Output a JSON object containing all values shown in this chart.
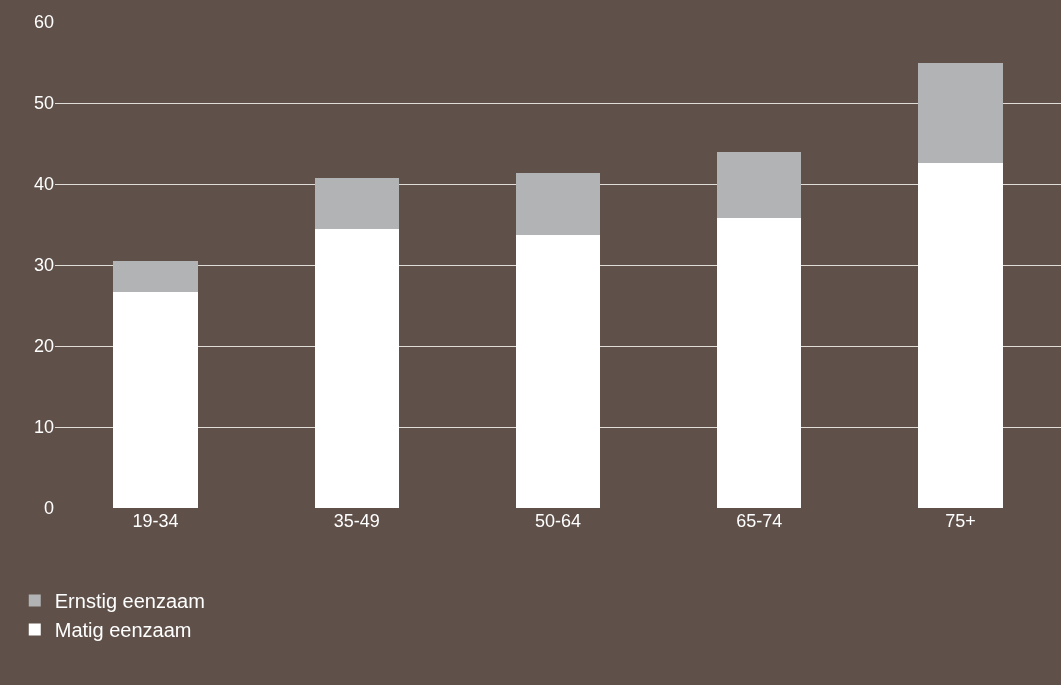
{
  "chart_data": {
    "type": "bar",
    "stacked": true,
    "categories": [
      "19-34",
      "35-49",
      "50-64",
      "65-74",
      "75+"
    ],
    "series": [
      {
        "name": "Matig eenzaam",
        "color": "#ffffff",
        "values": [
          26.7,
          34.4,
          33.7,
          35.8,
          42.6
        ]
      },
      {
        "name": "Ernstig eenzaam",
        "color": "#b1b3b4",
        "values": [
          3.8,
          6.3,
          7.7,
          8.2,
          12.3
        ]
      }
    ],
    "ylim": [
      0,
      60
    ],
    "yticks": [
      0,
      10,
      20,
      30,
      40,
      50,
      60
    ],
    "grid": "y",
    "legend": "bottom left"
  }
}
